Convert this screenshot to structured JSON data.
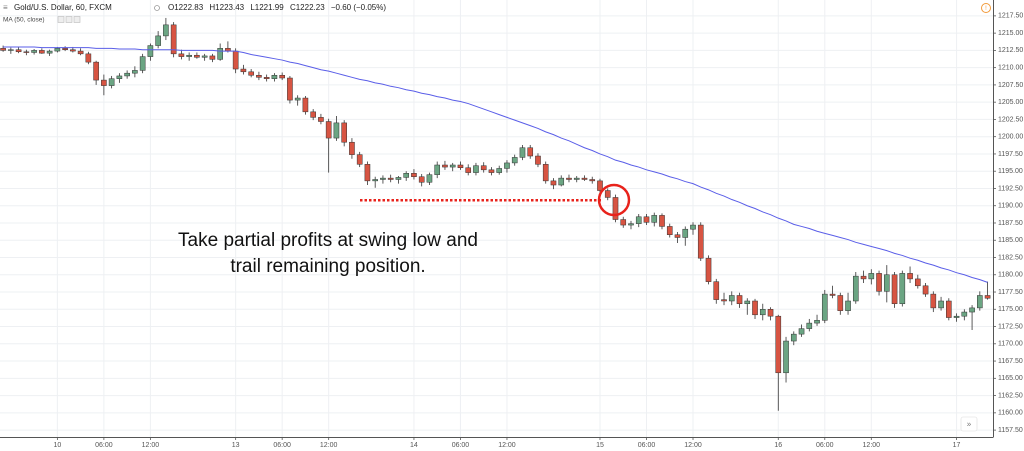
{
  "chart_data": {
    "type": "candlestick",
    "title": "Gold/U.S. Dollar, 60, FXCM",
    "header": {
      "open_label": "O",
      "open": 1222.83,
      "high_label": "H",
      "high": 1223.43,
      "low_label": "L",
      "low": 1221.99,
      "close_label": "C",
      "close": 1222.23,
      "change": "−0.60 (−0.05%)"
    },
    "indicator_label": "MA (50, close)",
    "annotation": [
      "Take partial profits at swing low and",
      "trail remaining position."
    ],
    "swing_low_level": 1190.8,
    "up_color": "#6ba583",
    "down_color": "#d75442",
    "ma_color": "#5a5ee8",
    "annotation_color": "#e8221b",
    "grid": true,
    "xlim": [
      -0.4,
      127.7
    ],
    "ylim": [
      1156.5,
      1219.8
    ],
    "xticks": [
      {
        "value": 7,
        "label": "10"
      },
      {
        "value": 13,
        "label": "06:00"
      },
      {
        "value": 19,
        "label": "12:00"
      },
      {
        "value": 30,
        "label": "13"
      },
      {
        "value": 36,
        "label": "06:00"
      },
      {
        "value": 42,
        "label": "12:00"
      },
      {
        "value": 53,
        "label": "14"
      },
      {
        "value": 59,
        "label": "06:00"
      },
      {
        "value": 65,
        "label": "12:00"
      },
      {
        "value": 77,
        "label": "15"
      },
      {
        "value": 83,
        "label": "06:00"
      },
      {
        "value": 89,
        "label": "12:00"
      },
      {
        "value": 100,
        "label": "16"
      },
      {
        "value": 106,
        "label": "06:00"
      },
      {
        "value": 112,
        "label": "12:00"
      },
      {
        "value": 123,
        "label": "17"
      }
    ],
    "yticks": [
      {
        "value": 1157.5,
        "label": "1157.50"
      },
      {
        "value": 1160,
        "label": "1160.00"
      },
      {
        "value": 1162.5,
        "label": "1162.50"
      },
      {
        "value": 1165,
        "label": "1165.00"
      },
      {
        "value": 1167.5,
        "label": "1167.50"
      },
      {
        "value": 1170,
        "label": "1170.00"
      },
      {
        "value": 1172.5,
        "label": "1172.50"
      },
      {
        "value": 1175,
        "label": "1175.00"
      },
      {
        "value": 1177.5,
        "label": "1177.50"
      },
      {
        "value": 1180,
        "label": "1180.00"
      },
      {
        "value": 1182.5,
        "label": "1182.50"
      },
      {
        "value": 1185,
        "label": "1185.00"
      },
      {
        "value": 1187.5,
        "label": "1187.50"
      },
      {
        "value": 1190,
        "label": "1190.00"
      },
      {
        "value": 1192.5,
        "label": "1192.50"
      },
      {
        "value": 1195,
        "label": "1195.00"
      },
      {
        "value": 1197.5,
        "label": "1197.50"
      },
      {
        "value": 1200,
        "label": "1200.00"
      },
      {
        "value": 1202.5,
        "label": "1202.50"
      },
      {
        "value": 1205,
        "label": "1205.00"
      },
      {
        "value": 1207.5,
        "label": "1207.50"
      },
      {
        "value": 1210,
        "label": "1210.00"
      },
      {
        "value": 1212.5,
        "label": "1212.50"
      },
      {
        "value": 1215,
        "label": "1215.00"
      },
      {
        "value": 1217.5,
        "label": "1217.50"
      }
    ],
    "candles": [
      [
        1212.8,
        1213.2,
        1212.3,
        1212.5
      ],
      [
        1212.5,
        1212.9,
        1212.0,
        1212.6
      ],
      [
        1212.6,
        1213.0,
        1212.1,
        1212.3
      ],
      [
        1212.3,
        1212.6,
        1211.8,
        1212.2
      ],
      [
        1212.2,
        1212.7,
        1211.9,
        1212.5
      ],
      [
        1212.5,
        1212.8,
        1212.0,
        1212.1
      ],
      [
        1212.1,
        1212.6,
        1211.7,
        1212.4
      ],
      [
        1212.4,
        1213.0,
        1212.2,
        1212.8
      ],
      [
        1212.8,
        1213.1,
        1212.4,
        1212.6
      ],
      [
        1212.6,
        1213.0,
        1212.2,
        1212.4
      ],
      [
        1212.4,
        1212.8,
        1211.8,
        1212.0
      ],
      [
        1212.0,
        1212.3,
        1210.5,
        1210.8
      ],
      [
        1210.8,
        1211.0,
        1207.5,
        1208.2
      ],
      [
        1208.2,
        1209.0,
        1206.0,
        1207.4
      ],
      [
        1207.4,
        1208.8,
        1207.0,
        1208.4
      ],
      [
        1208.4,
        1209.2,
        1207.8,
        1208.8
      ],
      [
        1208.8,
        1209.6,
        1208.4,
        1209.2
      ],
      [
        1209.2,
        1210.2,
        1208.6,
        1209.6
      ],
      [
        1209.6,
        1212.0,
        1209.2,
        1211.6
      ],
      [
        1211.6,
        1213.5,
        1211.0,
        1213.2
      ],
      [
        1213.2,
        1215.3,
        1212.8,
        1214.6
      ],
      [
        1214.6,
        1217.2,
        1214.0,
        1216.2
      ],
      [
        1216.2,
        1216.6,
        1211.5,
        1212.0
      ],
      [
        1212.0,
        1212.6,
        1211.2,
        1211.6
      ],
      [
        1211.6,
        1212.2,
        1211.0,
        1211.8
      ],
      [
        1211.8,
        1212.2,
        1211.3,
        1211.5
      ],
      [
        1211.5,
        1212.0,
        1211.0,
        1211.7
      ],
      [
        1211.7,
        1212.0,
        1210.8,
        1211.2
      ],
      [
        1211.2,
        1213.5,
        1211.0,
        1212.8
      ],
      [
        1212.8,
        1213.8,
        1212.2,
        1212.4
      ],
      [
        1212.4,
        1212.8,
        1209.2,
        1209.8
      ],
      [
        1209.8,
        1210.4,
        1209.0,
        1209.4
      ],
      [
        1209.4,
        1209.8,
        1208.6,
        1208.9
      ],
      [
        1208.9,
        1209.4,
        1208.2,
        1208.6
      ],
      [
        1208.6,
        1209.0,
        1208.0,
        1208.4
      ],
      [
        1208.4,
        1209.2,
        1208.0,
        1208.9
      ],
      [
        1208.9,
        1209.3,
        1208.2,
        1208.5
      ],
      [
        1208.5,
        1208.8,
        1204.8,
        1205.3
      ],
      [
        1205.3,
        1206.0,
        1204.5,
        1205.6
      ],
      [
        1205.6,
        1205.9,
        1203.2,
        1203.6
      ],
      [
        1203.6,
        1204.0,
        1202.4,
        1202.8
      ],
      [
        1202.8,
        1203.3,
        1201.8,
        1202.2
      ],
      [
        1202.2,
        1202.6,
        1194.8,
        1199.8
      ],
      [
        1199.8,
        1203.0,
        1199.4,
        1202.0
      ],
      [
        1202.0,
        1202.4,
        1198.6,
        1199.2
      ],
      [
        1199.2,
        1199.8,
        1196.8,
        1197.4
      ],
      [
        1197.4,
        1197.8,
        1195.6,
        1196.0
      ],
      [
        1196.0,
        1196.4,
        1193.0,
        1193.6
      ],
      [
        1193.6,
        1194.2,
        1192.6,
        1193.8
      ],
      [
        1193.8,
        1194.4,
        1193.2,
        1194.0
      ],
      [
        1194.0,
        1194.5,
        1193.4,
        1193.8
      ],
      [
        1193.8,
        1194.3,
        1193.2,
        1194.1
      ],
      [
        1194.1,
        1195.0,
        1193.6,
        1194.7
      ],
      [
        1194.7,
        1195.3,
        1193.8,
        1194.2
      ],
      [
        1194.2,
        1194.6,
        1192.8,
        1193.4
      ],
      [
        1193.4,
        1194.8,
        1193.0,
        1194.5
      ],
      [
        1194.5,
        1196.4,
        1194.0,
        1195.9
      ],
      [
        1195.9,
        1196.5,
        1195.2,
        1195.6
      ],
      [
        1195.6,
        1196.2,
        1195.0,
        1195.9
      ],
      [
        1195.9,
        1196.4,
        1195.2,
        1195.5
      ],
      [
        1195.5,
        1196.0,
        1194.4,
        1194.8
      ],
      [
        1194.8,
        1196.2,
        1194.4,
        1195.8
      ],
      [
        1195.8,
        1196.3,
        1194.8,
        1195.2
      ],
      [
        1195.2,
        1195.6,
        1194.4,
        1194.8
      ],
      [
        1194.8,
        1195.8,
        1194.5,
        1195.4
      ],
      [
        1195.4,
        1196.6,
        1194.8,
        1196.2
      ],
      [
        1196.2,
        1197.4,
        1195.8,
        1197.0
      ],
      [
        1197.0,
        1198.8,
        1196.6,
        1198.4
      ],
      [
        1198.4,
        1198.8,
        1196.8,
        1197.2
      ],
      [
        1197.2,
        1197.6,
        1195.6,
        1196.0
      ],
      [
        1196.0,
        1196.4,
        1193.2,
        1193.6
      ],
      [
        1193.6,
        1194.0,
        1192.4,
        1193.0
      ],
      [
        1193.0,
        1194.4,
        1192.8,
        1194.0
      ],
      [
        1194.0,
        1194.5,
        1193.4,
        1193.8
      ],
      [
        1193.8,
        1194.3,
        1193.4,
        1194.0
      ],
      [
        1194.0,
        1194.4,
        1193.6,
        1193.8
      ],
      [
        1193.8,
        1194.2,
        1193.2,
        1193.6
      ],
      [
        1193.6,
        1193.9,
        1191.8,
        1192.2
      ],
      [
        1192.2,
        1192.5,
        1190.8,
        1191.2
      ],
      [
        1191.2,
        1191.6,
        1187.6,
        1188.0
      ],
      [
        1188.0,
        1188.4,
        1186.8,
        1187.2
      ],
      [
        1187.2,
        1187.8,
        1186.6,
        1187.4
      ],
      [
        1187.4,
        1188.8,
        1186.9,
        1188.4
      ],
      [
        1188.4,
        1188.8,
        1187.2,
        1187.6
      ],
      [
        1187.6,
        1189.0,
        1187.0,
        1188.6
      ],
      [
        1188.6,
        1188.9,
        1186.6,
        1187.0
      ],
      [
        1187.0,
        1187.4,
        1185.4,
        1185.8
      ],
      [
        1185.8,
        1186.2,
        1184.6,
        1185.4
      ],
      [
        1185.4,
        1187.0,
        1184.2,
        1186.6
      ],
      [
        1186.6,
        1187.6,
        1185.8,
        1187.2
      ],
      [
        1187.2,
        1187.6,
        1182.0,
        1182.4
      ],
      [
        1182.4,
        1182.8,
        1178.6,
        1179.0
      ],
      [
        1179.0,
        1179.4,
        1175.8,
        1176.4
      ],
      [
        1176.4,
        1177.4,
        1175.6,
        1176.2
      ],
      [
        1176.2,
        1177.6,
        1175.6,
        1177.0
      ],
      [
        1177.0,
        1177.4,
        1175.2,
        1175.8
      ],
      [
        1175.8,
        1176.6,
        1174.2,
        1176.2
      ],
      [
        1176.2,
        1176.5,
        1173.6,
        1174.2
      ],
      [
        1174.2,
        1175.8,
        1173.4,
        1175.0
      ],
      [
        1175.0,
        1175.3,
        1173.4,
        1174.0
      ],
      [
        1174.0,
        1174.2,
        1160.3,
        1165.8
      ],
      [
        1165.8,
        1171.0,
        1164.4,
        1170.4
      ],
      [
        1170.4,
        1171.8,
        1169.8,
        1171.4
      ],
      [
        1171.4,
        1172.8,
        1171.0,
        1172.2
      ],
      [
        1172.2,
        1173.6,
        1171.8,
        1173.0
      ],
      [
        1173.0,
        1174.2,
        1172.6,
        1173.4
      ],
      [
        1173.4,
        1177.8,
        1173.0,
        1177.2
      ],
      [
        1177.2,
        1178.4,
        1176.6,
        1177.0
      ],
      [
        1177.0,
        1177.4,
        1174.2,
        1174.8
      ],
      [
        1174.8,
        1177.4,
        1174.2,
        1176.2
      ],
      [
        1176.2,
        1180.4,
        1175.8,
        1179.8
      ],
      [
        1179.8,
        1180.6,
        1178.8,
        1179.4
      ],
      [
        1179.4,
        1180.8,
        1178.6,
        1180.2
      ],
      [
        1180.2,
        1180.6,
        1177.0,
        1177.6
      ],
      [
        1177.6,
        1181.4,
        1176.0,
        1180.0
      ],
      [
        1180.0,
        1180.4,
        1175.2,
        1175.8
      ],
      [
        1175.8,
        1180.6,
        1175.4,
        1180.2
      ],
      [
        1180.2,
        1181.2,
        1178.8,
        1179.4
      ],
      [
        1179.4,
        1180.0,
        1178.0,
        1178.4
      ],
      [
        1178.4,
        1178.8,
        1176.8,
        1177.2
      ],
      [
        1177.2,
        1177.6,
        1174.6,
        1175.2
      ],
      [
        1175.2,
        1176.8,
        1174.8,
        1176.2
      ],
      [
        1176.2,
        1176.6,
        1173.4,
        1173.8
      ],
      [
        1173.8,
        1174.4,
        1173.2,
        1174.0
      ],
      [
        1174.0,
        1175.0,
        1173.4,
        1174.6
      ],
      [
        1174.6,
        1175.6,
        1172.0,
        1175.2
      ],
      [
        1175.2,
        1177.6,
        1174.8,
        1177.0
      ],
      [
        1177.0,
        1179.0,
        1176.4,
        1176.6
      ]
    ],
    "ma": [
      1213.0,
      1213.0,
      1213.0,
      1213.0,
      1213.0,
      1212.9,
      1212.9,
      1212.9,
      1212.9,
      1212.9,
      1212.9,
      1212.9,
      1212.8,
      1212.8,
      1212.8,
      1212.7,
      1212.7,
      1212.7,
      1212.6,
      1212.6,
      1212.6,
      1212.6,
      1212.6,
      1212.5,
      1212.5,
      1212.5,
      1212.5,
      1212.5,
      1212.4,
      1212.4,
      1212.4,
      1212.2,
      1211.9,
      1211.7,
      1211.5,
      1211.3,
      1211.1,
      1210.8,
      1210.6,
      1210.3,
      1210.0,
      1209.7,
      1209.5,
      1209.2,
      1208.9,
      1208.6,
      1208.3,
      1208.1,
      1207.8,
      1207.6,
      1207.3,
      1207.1,
      1206.8,
      1206.6,
      1206.3,
      1206.1,
      1205.8,
      1205.6,
      1205.3,
      1205.1,
      1204.8,
      1204.4,
      1204.0,
      1203.6,
      1203.2,
      1202.8,
      1202.4,
      1202.0,
      1201.6,
      1201.2,
      1200.7,
      1200.3,
      1199.8,
      1199.4,
      1198.9,
      1198.4,
      1198.0,
      1197.5,
      1197.1,
      1196.6,
      1196.3,
      1195.9,
      1195.6,
      1195.2,
      1194.9,
      1194.6,
      1194.2,
      1193.9,
      1193.5,
      1193.2,
      1192.7,
      1192.3,
      1191.8,
      1191.4,
      1190.9,
      1190.5,
      1190.0,
      1189.6,
      1189.1,
      1188.7,
      1188.2,
      1187.8,
      1187.3,
      1187.0,
      1186.7,
      1186.3,
      1186.0,
      1185.7,
      1185.4,
      1185.1,
      1184.7,
      1184.4,
      1184.1,
      1183.8,
      1183.5,
      1183.1,
      1182.8,
      1182.4,
      1182.1,
      1181.7,
      1181.4,
      1181.0,
      1180.7,
      1180.3,
      1180.0,
      1179.6,
      1179.3,
      1178.9
    ]
  }
}
